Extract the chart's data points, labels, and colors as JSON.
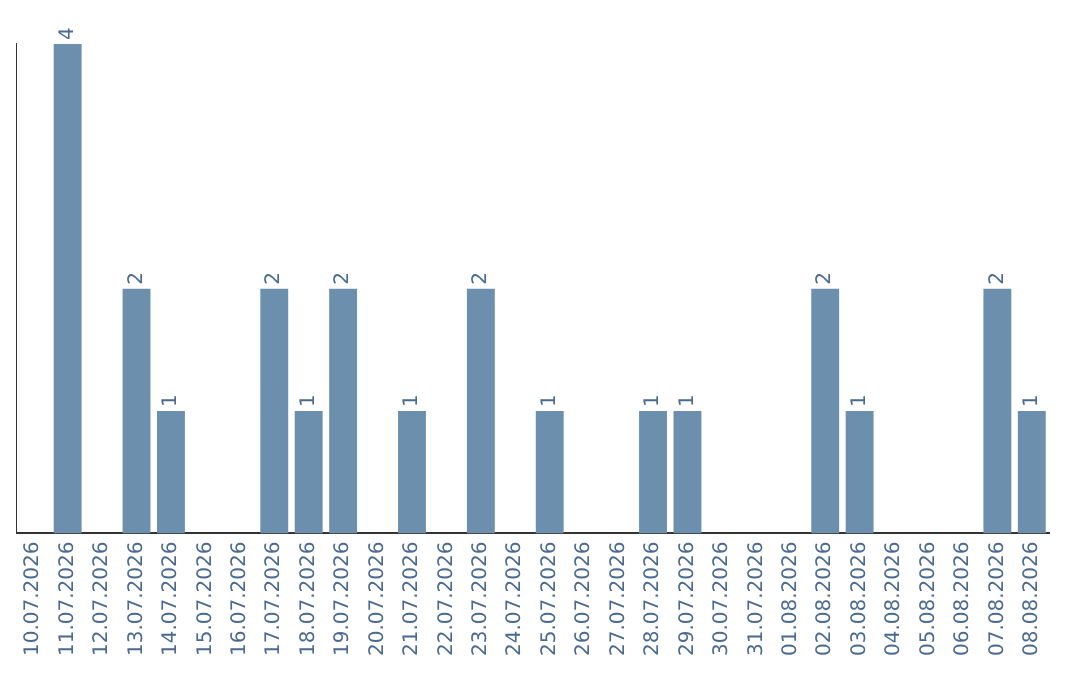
{
  "chart_data": {
    "type": "bar",
    "categories": [
      "10.07.2026",
      "11.07.2026",
      "12.07.2026",
      "13.07.2026",
      "14.07.2026",
      "15.07.2026",
      "16.07.2026",
      "17.07.2026",
      "18.07.2026",
      "19.07.2026",
      "20.07.2026",
      "21.07.2026",
      "22.07.2026",
      "23.07.2026",
      "24.07.2026",
      "25.07.2026",
      "26.07.2026",
      "27.07.2026",
      "28.07.2026",
      "29.07.2026",
      "30.07.2026",
      "31.07.2026",
      "01.08.2026",
      "02.08.2026",
      "03.08.2026",
      "04.08.2026",
      "05.08.2026",
      "06.08.2026",
      "07.08.2026",
      "08.08.2026"
    ],
    "values": [
      0,
      4,
      0,
      2,
      1,
      0,
      0,
      2,
      1,
      2,
      0,
      1,
      0,
      2,
      0,
      1,
      0,
      0,
      1,
      1,
      0,
      0,
      0,
      2,
      1,
      0,
      0,
      0,
      2,
      1
    ],
    "value_labels": [
      null,
      "4",
      null,
      "2",
      "1",
      null,
      null,
      "2",
      "1",
      "2",
      null,
      "1",
      null,
      "2",
      null,
      "1",
      null,
      null,
      "1",
      "1",
      null,
      null,
      null,
      "2",
      "1",
      null,
      null,
      null,
      "2",
      "1"
    ],
    "color": "#6d8fae",
    "grid": false,
    "legend": false
  }
}
